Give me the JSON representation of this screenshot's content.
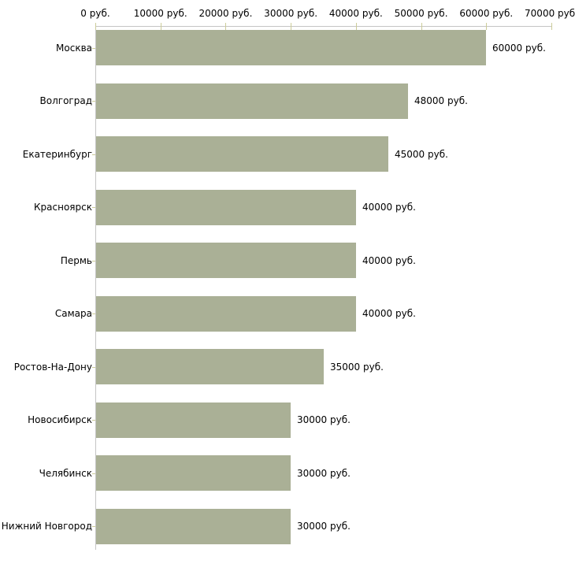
{
  "chart_data": {
    "type": "bar",
    "orientation": "horizontal",
    "title": "",
    "xlabel": "",
    "ylabel": "",
    "unit": "руб.",
    "categories": [
      "Москва",
      "Волгоград",
      "Екатеринбург",
      "Красноярск",
      "Пермь",
      "Самара",
      "Ростов-На-Дону",
      "Новосибирск",
      "Челябинск",
      "Нижний Новгород"
    ],
    "values": [
      60000,
      48000,
      45000,
      40000,
      40000,
      40000,
      35000,
      30000,
      30000,
      30000
    ],
    "value_labels": [
      "60000 руб.",
      "48000 руб.",
      "45000 руб.",
      "40000 руб.",
      "40000 руб.",
      "40000 руб.",
      "35000 руб.",
      "30000 руб.",
      "30000 руб.",
      "30000 руб."
    ],
    "xlim": [
      0,
      70000
    ],
    "x_ticks": [
      0,
      10000,
      20000,
      30000,
      40000,
      50000,
      60000,
      70000
    ],
    "x_tick_labels": [
      "0 руб.",
      "10000 руб.",
      "20000 руб.",
      "30000 руб.",
      "40000 руб.",
      "50000 руб.",
      "60000 руб.",
      "70000 руб."
    ],
    "grid": false,
    "legend_position": "none",
    "colors": {
      "bar": "#aab096",
      "axis": "#c5c5c5",
      "tick": "#cccc99",
      "text": "#000000",
      "background": "#ffffff"
    }
  }
}
